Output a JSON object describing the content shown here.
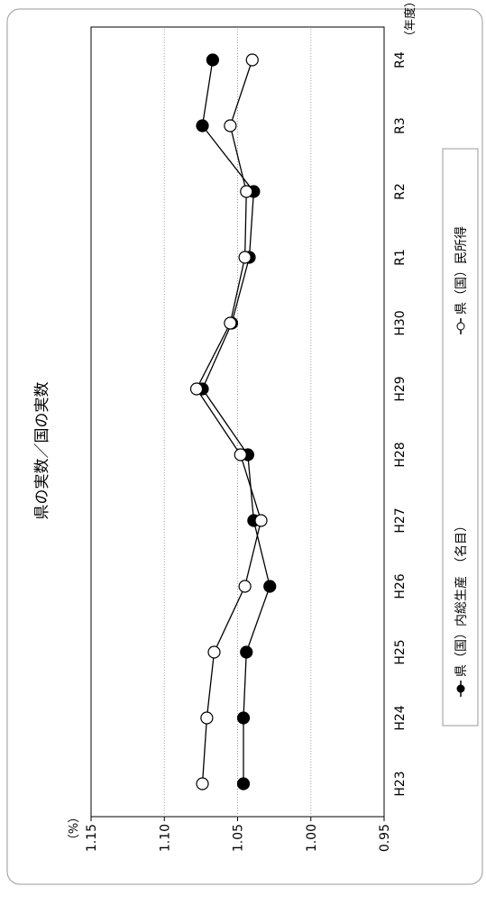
{
  "chart_data": {
    "type": "line",
    "title": "県の実数／国の実数",
    "y_unit": "（%）",
    "x_unit": "（年度）",
    "categories": [
      "H23",
      "H24",
      "H25",
      "H26",
      "H27",
      "H28",
      "H29",
      "H30",
      "R1",
      "R2",
      "R3",
      "R4"
    ],
    "series": [
      {
        "name": "県（国）内総生産　（名目）",
        "marker": "filled-circle",
        "values": [
          1.046,
          1.046,
          1.044,
          1.028,
          1.039,
          1.043,
          1.074,
          1.054,
          1.042,
          1.039,
          1.074,
          1.067
        ]
      },
      {
        "name": "県（国）民所得",
        "marker": "open-circle",
        "values": [
          1.074,
          1.071,
          1.066,
          1.045,
          1.034,
          1.048,
          1.078,
          1.055,
          1.045,
          1.044,
          1.055,
          1.04
        ]
      }
    ],
    "ylim": [
      0.95,
      1.15
    ],
    "yticks": [
      "0.95",
      "1.00",
      "1.05",
      "1.10",
      "1.15"
    ],
    "grid": true,
    "legend_position": "right",
    "orientation": "rotated-90-counterclockwise"
  }
}
